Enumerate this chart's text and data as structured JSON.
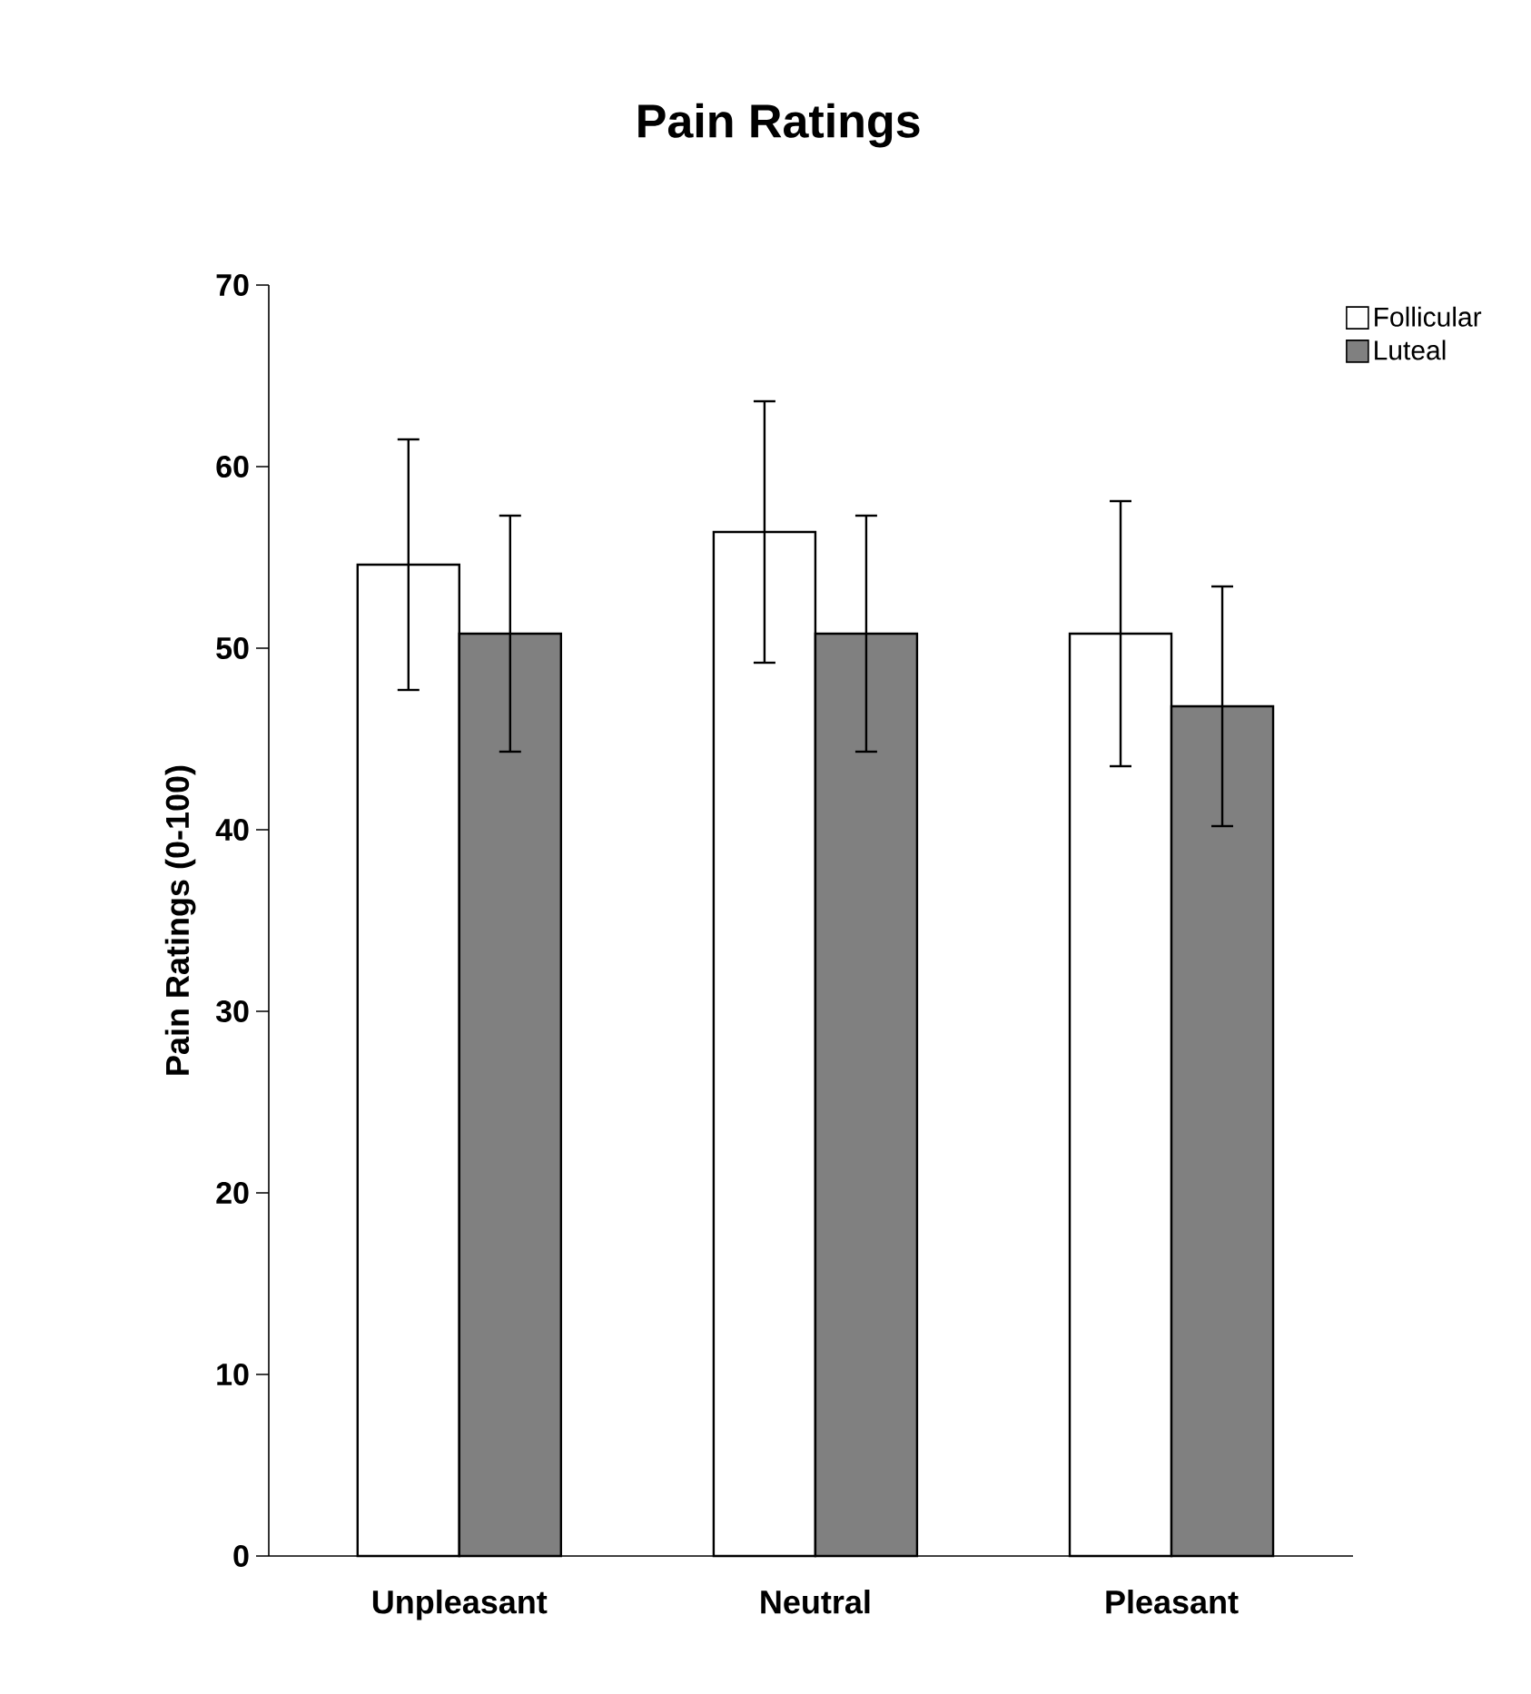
{
  "chart_data": {
    "type": "bar",
    "title": "Pain Ratings",
    "ylabel": "Pain Ratings (0-100)",
    "categories": [
      "Unpleasant",
      "Neutral",
      "Pleasant"
    ],
    "series": [
      {
        "name": "Follicular",
        "color": "#ffffff",
        "values": [
          54.6,
          56.4,
          50.8
        ],
        "errors": [
          6.9,
          7.2,
          7.3
        ]
      },
      {
        "name": "Luteal",
        "color": "#808080",
        "values": [
          50.8,
          50.8,
          46.8
        ],
        "errors": [
          6.5,
          6.5,
          6.6
        ]
      }
    ],
    "ylim": [
      0,
      70
    ],
    "yticks": [
      0,
      10,
      20,
      30,
      40,
      50,
      60,
      70
    ],
    "grid": false,
    "legend": "top right"
  }
}
